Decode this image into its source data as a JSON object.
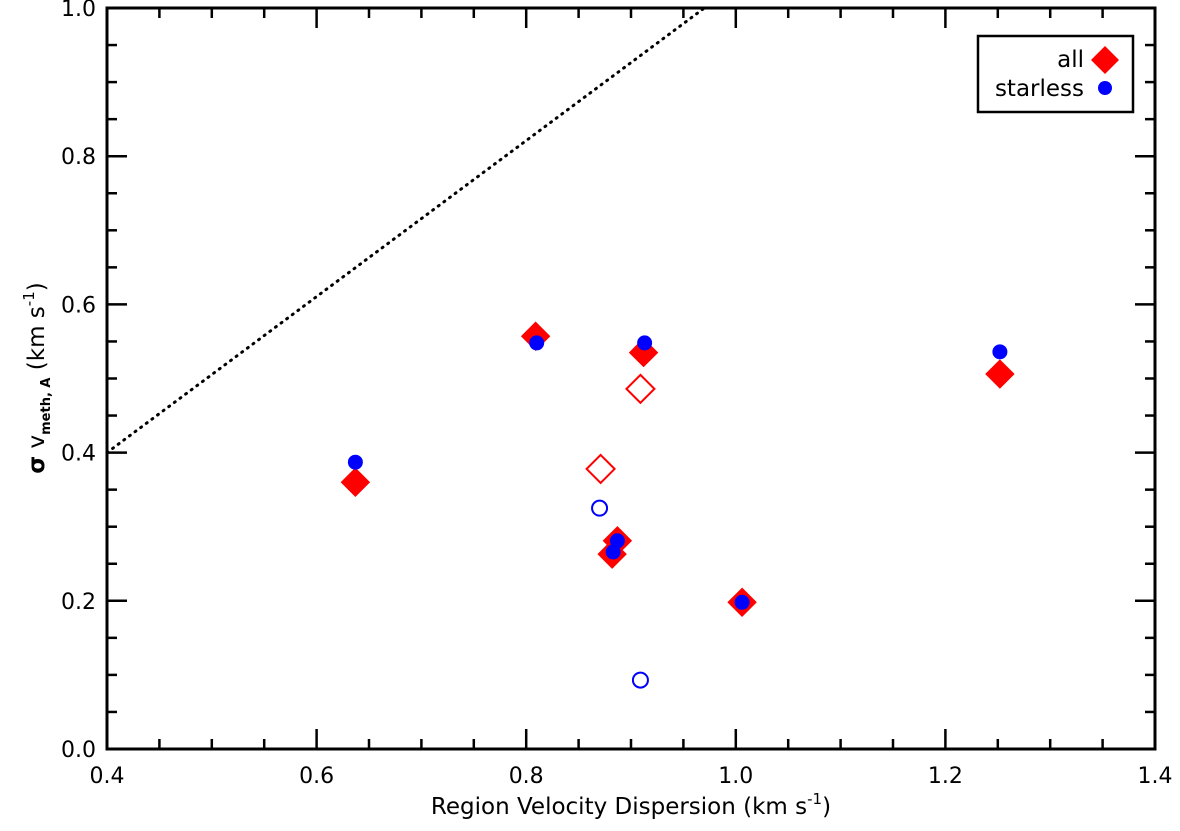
{
  "chart_data": {
    "type": "scatter",
    "title": "",
    "xlabel": {
      "main": "Region Velocity Dispersion (km s",
      "sup": "-1",
      "close": ")"
    },
    "ylabel": {
      "sigma": "σ",
      "v": " v",
      "sub": "meth, A",
      "units": " (km s",
      "sup": "-1",
      "close": ")"
    },
    "xlim": [
      0.4,
      1.4
    ],
    "ylim": [
      0.0,
      1.0
    ],
    "xticks": [
      "0.4",
      "0.6",
      "0.8",
      "1.0",
      "1.2",
      "1.4"
    ],
    "yticks": [
      "0.0",
      "0.2",
      "0.4",
      "0.6",
      "0.8",
      "1.0"
    ],
    "x_minor_step": 0.05,
    "y_minor_step": 0.05,
    "grid": false,
    "legend_position": "top-right",
    "reference_line": {
      "style": "dotted",
      "x": [
        0.4,
        0.97
      ],
      "y": [
        0.4,
        1.0
      ]
    },
    "series": [
      {
        "name": "all",
        "marker": "diamond",
        "color": "#ff0000",
        "filled": [
          [
            0.637,
            0.36
          ],
          [
            0.809,
            0.557
          ],
          [
            0.912,
            0.535
          ],
          [
            1.252,
            0.506
          ],
          [
            0.887,
            0.281
          ],
          [
            0.882,
            0.263
          ],
          [
            1.006,
            0.198
          ]
        ],
        "open": [
          [
            0.909,
            0.486
          ],
          [
            0.871,
            0.378
          ]
        ]
      },
      {
        "name": "starless",
        "marker": "circle",
        "color": "#0000ff",
        "filled": [
          [
            0.637,
            0.387
          ],
          [
            0.81,
            0.548
          ],
          [
            0.913,
            0.548
          ],
          [
            1.252,
            0.536
          ],
          [
            0.887,
            0.281
          ],
          [
            0.883,
            0.266
          ],
          [
            1.006,
            0.198
          ]
        ],
        "open": [
          [
            0.87,
            0.325
          ],
          [
            0.909,
            0.093
          ]
        ]
      }
    ]
  }
}
